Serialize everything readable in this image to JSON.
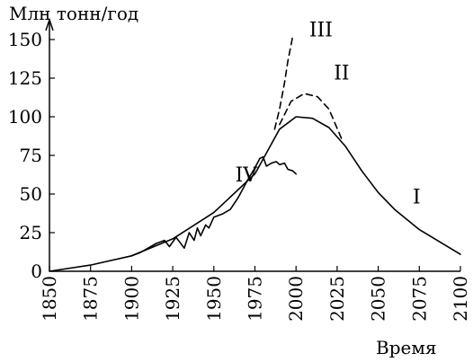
{
  "chart_data": {
    "type": "line",
    "title": "",
    "xlabel": "Время",
    "ylabel": "Млн тонн/год",
    "xlim": [
      1850,
      2100
    ],
    "ylim": [
      0,
      150
    ],
    "x_ticks": [
      1850,
      1875,
      1900,
      1925,
      1950,
      1975,
      2000,
      2025,
      2050,
      2075,
      2100
    ],
    "y_ticks": [
      0,
      25,
      50,
      75,
      100,
      125,
      150
    ],
    "grid": false,
    "legend": "none",
    "series": [
      {
        "name": "I",
        "style": "solid",
        "x": [
          1850,
          1875,
          1900,
          1925,
          1950,
          1975,
          1990,
          2000,
          2010,
          2020,
          2030,
          2040,
          2050,
          2060,
          2075,
          2100
        ],
        "y": [
          0,
          4,
          10,
          21,
          38,
          63,
          92,
          100,
          99,
          93,
          81,
          65,
          51,
          40,
          27,
          11
        ]
      },
      {
        "name": "II",
        "style": "dashed",
        "x": [
          1990,
          1997,
          2005,
          2013,
          2020,
          2028
        ],
        "y": [
          95,
          110,
          115,
          113,
          105,
          85
        ]
      },
      {
        "name": "III",
        "style": "dashed",
        "x": [
          1987,
          1990,
          1993,
          1995,
          1998
        ],
        "y": [
          92,
          105,
          122,
          136,
          152
        ]
      },
      {
        "name": "IV",
        "style": "solid",
        "x": [
          1900,
          1905,
          1910,
          1915,
          1920,
          1923,
          1927,
          1932,
          1935,
          1938,
          1940,
          1942,
          1945,
          1947,
          1950,
          1955,
          1960,
          1965,
          1970,
          1975,
          1978,
          1980,
          1982,
          1985,
          1988,
          1990,
          1993,
          1995,
          1998,
          2000
        ],
        "y": [
          10,
          12,
          15,
          18,
          20,
          16,
          22,
          15,
          25,
          20,
          28,
          23,
          30,
          28,
          35,
          37,
          40,
          48,
          58,
          67,
          73,
          74,
          68,
          70,
          71,
          69,
          70,
          66,
          65,
          63
        ]
      }
    ],
    "curve_labels": [
      "I",
      "II",
      "III",
      "IV"
    ]
  }
}
